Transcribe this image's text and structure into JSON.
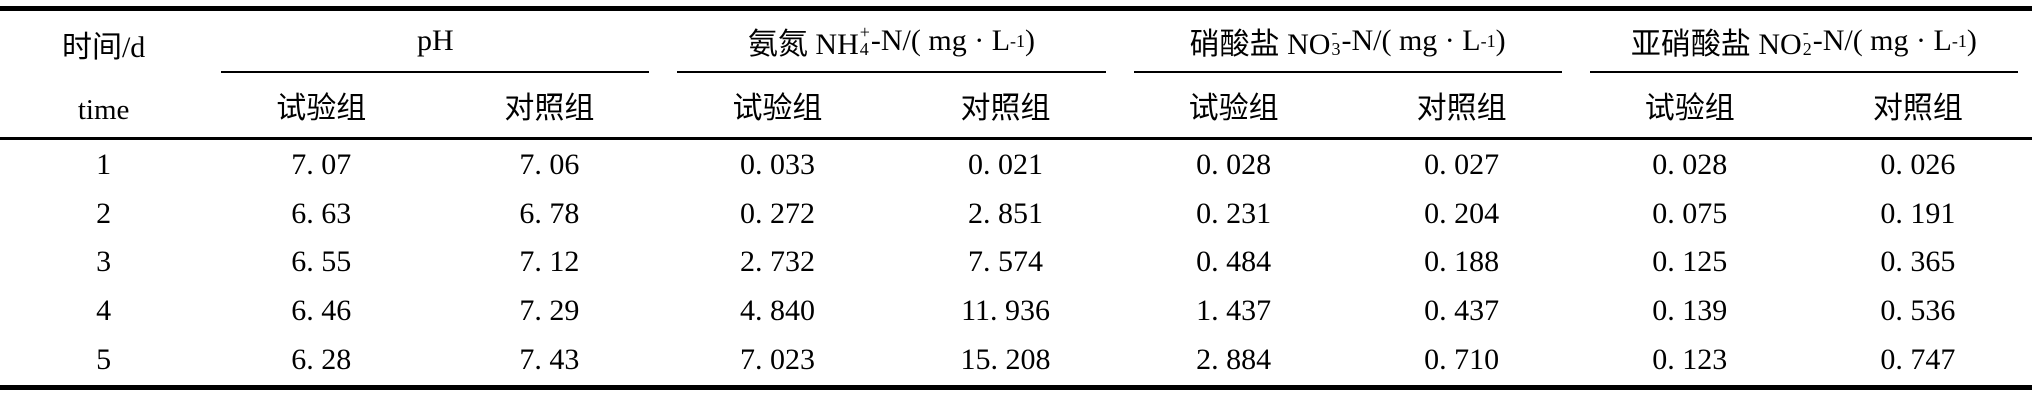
{
  "page": {
    "background_color": "#ffffff",
    "text_color": "#000000",
    "rule_color": "#000000"
  },
  "table": {
    "time_header": {
      "line1": "时间/d",
      "line2": "time"
    },
    "subheaders": {
      "experimental": "试验组",
      "control": "对照组"
    },
    "groups": [
      {
        "name": "ph",
        "segments": [
          {
            "type": "text",
            "text": "pH"
          }
        ]
      },
      {
        "name": "ammonia-nitrogen",
        "segments": [
          {
            "type": "text",
            "text": "氨氮 NH"
          },
          {
            "type": "stack",
            "sup": "+",
            "sub": "4"
          },
          {
            "type": "text",
            "text": "-N/( mg · L"
          },
          {
            "type": "sup",
            "text": "-1"
          },
          {
            "type": "text",
            "text": " )"
          }
        ]
      },
      {
        "name": "nitrate",
        "segments": [
          {
            "type": "text",
            "text": "硝酸盐 NO"
          },
          {
            "type": "stack",
            "sup": "-",
            "sub": "3"
          },
          {
            "type": "text",
            "text": "-N/( mg · L"
          },
          {
            "type": "sup",
            "text": "-1"
          },
          {
            "type": "text",
            "text": " )"
          }
        ]
      },
      {
        "name": "nitrite",
        "segments": [
          {
            "type": "text",
            "text": "亚硝酸盐 NO"
          },
          {
            "type": "stack",
            "sup": "-",
            "sub": "2"
          },
          {
            "type": "text",
            "text": "-N/( mg · L"
          },
          {
            "type": "sup",
            "text": "-1"
          },
          {
            "type": "text",
            "text": " )"
          }
        ]
      }
    ],
    "rows": [
      {
        "time": "1",
        "values": [
          "7. 07",
          "7. 06",
          "0. 033",
          "0. 021",
          "0. 028",
          "0. 027",
          "0. 028",
          "0. 026"
        ]
      },
      {
        "time": "2",
        "values": [
          "6. 63",
          "6. 78",
          "0. 272",
          "2. 851",
          "0. 231",
          "0. 204",
          "0. 075",
          "0. 191"
        ]
      },
      {
        "time": "3",
        "values": [
          "6. 55",
          "7. 12",
          "2. 732",
          "7. 574",
          "0. 484",
          "0. 188",
          "0. 125",
          "0. 365"
        ]
      },
      {
        "time": "4",
        "values": [
          "6. 46",
          "7. 29",
          "4. 840",
          "11. 936",
          "1. 437",
          "0. 437",
          "0. 139",
          "0. 536"
        ]
      },
      {
        "time": "5",
        "values": [
          "6. 28",
          "7. 43",
          "7. 023",
          "15. 208",
          "2. 884",
          "0. 710",
          "0. 123",
          "0. 747"
        ]
      }
    ]
  }
}
